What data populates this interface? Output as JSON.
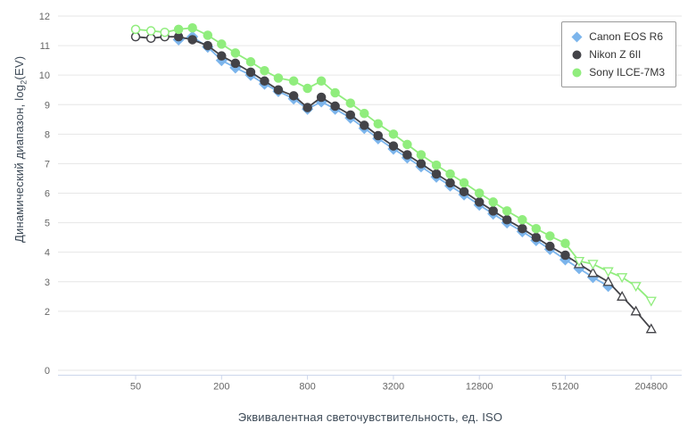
{
  "chart": {
    "y_axis": {
      "title_prefix": "Динамический диапазон, log",
      "title_sub": "2",
      "title_suffix": "(EV)"
    },
    "x_axis": {
      "title": "Эквивалентная светочувствительность, ед. ISO"
    },
    "colors": {
      "grid": "#e6e6e6",
      "axis_line": "#ccd6eb",
      "tick_label": "#666666",
      "axis_title": "#3d4a57",
      "legend_border": "#999999",
      "legend_text": "#333333"
    }
  },
  "chart_data": {
    "type": "line",
    "x_scale": "log2",
    "xlim": [
      50,
      204800
    ],
    "ylim": [
      0,
      12
    ],
    "x_ticks": [
      50,
      200,
      800,
      3200,
      12800,
      51200,
      204800
    ],
    "y_ticks": [
      0,
      2,
      3,
      4,
      5,
      6,
      7,
      8,
      9,
      10,
      11,
      12
    ],
    "grid": "horizontal",
    "legend_position": "top-right",
    "series": [
      {
        "name": "Canon EOS R6",
        "color": "#7cb5ec",
        "marker": "diamond",
        "open_below": null,
        "tri_from": null,
        "tri_dir": "up",
        "points": [
          [
            100,
            11.2
          ],
          [
            125,
            11.3
          ],
          [
            160,
            10.95
          ],
          [
            200,
            10.5
          ],
          [
            250,
            10.25
          ],
          [
            320,
            10.0
          ],
          [
            400,
            9.7
          ],
          [
            500,
            9.45
          ],
          [
            640,
            9.2
          ],
          [
            800,
            8.85
          ],
          [
            1000,
            9.1
          ],
          [
            1250,
            8.85
          ],
          [
            1600,
            8.55
          ],
          [
            2000,
            8.2
          ],
          [
            2500,
            7.85
          ],
          [
            3200,
            7.5
          ],
          [
            4000,
            7.2
          ],
          [
            5000,
            6.9
          ],
          [
            6400,
            6.55
          ],
          [
            8000,
            6.25
          ],
          [
            10000,
            5.95
          ],
          [
            12800,
            5.6
          ],
          [
            16000,
            5.3
          ],
          [
            20000,
            5.0
          ],
          [
            25600,
            4.7
          ],
          [
            32000,
            4.4
          ],
          [
            40000,
            4.1
          ],
          [
            51200,
            3.75
          ],
          [
            64000,
            3.45
          ],
          [
            80000,
            3.15
          ],
          [
            102400,
            2.85
          ]
        ]
      },
      {
        "name": "Nikon Z 6II",
        "color": "#434348",
        "marker": "circle",
        "open_below": 100,
        "tri_from": 64000,
        "tri_dir": "up",
        "points": [
          [
            50,
            11.3
          ],
          [
            64,
            11.25
          ],
          [
            80,
            11.3
          ],
          [
            100,
            11.3
          ],
          [
            125,
            11.2
          ],
          [
            160,
            11.0
          ],
          [
            200,
            10.65
          ],
          [
            250,
            10.4
          ],
          [
            320,
            10.1
          ],
          [
            400,
            9.8
          ],
          [
            500,
            9.5
          ],
          [
            640,
            9.3
          ],
          [
            800,
            8.9
          ],
          [
            1000,
            9.25
          ],
          [
            1250,
            8.95
          ],
          [
            1600,
            8.65
          ],
          [
            2000,
            8.3
          ],
          [
            2500,
            7.95
          ],
          [
            3200,
            7.6
          ],
          [
            4000,
            7.3
          ],
          [
            5000,
            7.0
          ],
          [
            6400,
            6.65
          ],
          [
            8000,
            6.35
          ],
          [
            10000,
            6.05
          ],
          [
            12800,
            5.7
          ],
          [
            16000,
            5.4
          ],
          [
            20000,
            5.1
          ],
          [
            25600,
            4.8
          ],
          [
            32000,
            4.5
          ],
          [
            40000,
            4.2
          ],
          [
            51200,
            3.9
          ],
          [
            64000,
            3.6
          ],
          [
            80000,
            3.3
          ],
          [
            102400,
            3.0
          ],
          [
            128000,
            2.5
          ],
          [
            160000,
            2.0
          ],
          [
            204800,
            1.4
          ]
        ]
      },
      {
        "name": "Sony ILCE-7M3",
        "color": "#90ed7d",
        "marker": "circle",
        "open_below": 100,
        "tri_from": 64000,
        "tri_dir": "down",
        "points": [
          [
            50,
            11.55
          ],
          [
            64,
            11.5
          ],
          [
            80,
            11.45
          ],
          [
            100,
            11.55
          ],
          [
            125,
            11.6
          ],
          [
            160,
            11.35
          ],
          [
            200,
            11.05
          ],
          [
            250,
            10.75
          ],
          [
            320,
            10.45
          ],
          [
            400,
            10.15
          ],
          [
            500,
            9.9
          ],
          [
            640,
            9.8
          ],
          [
            800,
            9.55
          ],
          [
            1000,
            9.8
          ],
          [
            1250,
            9.4
          ],
          [
            1600,
            9.05
          ],
          [
            2000,
            8.7
          ],
          [
            2500,
            8.35
          ],
          [
            3200,
            8.0
          ],
          [
            4000,
            7.65
          ],
          [
            5000,
            7.3
          ],
          [
            6400,
            6.95
          ],
          [
            8000,
            6.65
          ],
          [
            10000,
            6.35
          ],
          [
            12800,
            6.0
          ],
          [
            16000,
            5.7
          ],
          [
            20000,
            5.4
          ],
          [
            25600,
            5.1
          ],
          [
            32000,
            4.8
          ],
          [
            40000,
            4.55
          ],
          [
            51200,
            4.3
          ],
          [
            64000,
            3.7
          ],
          [
            80000,
            3.6
          ],
          [
            102400,
            3.35
          ],
          [
            128000,
            3.15
          ],
          [
            160000,
            2.85
          ],
          [
            204800,
            2.35
          ]
        ]
      }
    ]
  }
}
